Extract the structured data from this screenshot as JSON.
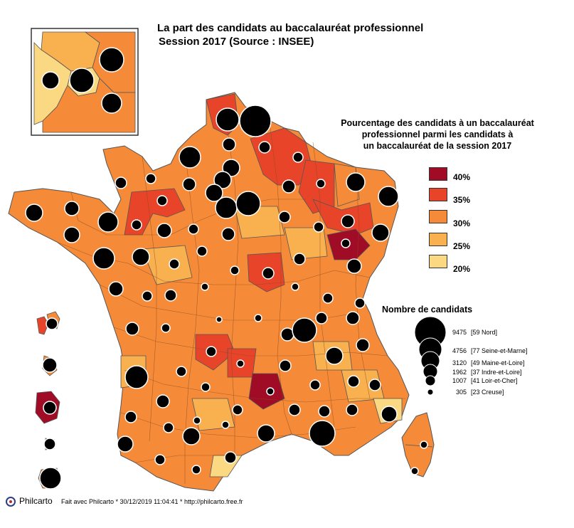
{
  "title": {
    "line1": "La part des candidats au baccalauréat professionnel",
    "line2": "Session 2017 (Source : INSEE)"
  },
  "legend": {
    "title_lines": [
      "Pourcentage des candidats à un baccalauréat",
      "professionnel parmi les candidats à",
      "un baccalauréat de la session 2017"
    ],
    "classes": [
      {
        "label": "40%",
        "color": "#a00b26"
      },
      {
        "label": "35%",
        "color": "#e8442a"
      },
      {
        "label": "30%",
        "color": "#f58b38"
      },
      {
        "label": "25%",
        "color": "#f9b04e"
      },
      {
        "label": "20%",
        "color": "#fbd882"
      }
    ]
  },
  "size_legend": {
    "title": "Nombre de candidats",
    "entries": [
      {
        "value": "9475",
        "name": "[59 Nord]"
      },
      {
        "value": "4756",
        "name": "[77 Seine-et-Marne]"
      },
      {
        "value": "3120",
        "name": "[49 Maine-et-Loire]"
      },
      {
        "value": "1962",
        "name": "[37 Indre-et-Loire]"
      },
      {
        "value": "1007",
        "name": "[41 Loir-et-Cher]"
      },
      {
        "value": "305",
        "name": "[23 Creuse]"
      }
    ]
  },
  "footer": {
    "brand": "Philcarto",
    "text": "Fait avec Philcarto * 30/12/2019 11:04:41 * http://philcarto.free.fr"
  },
  "map": {
    "border_color": "#555555",
    "bubble_color": "#000000",
    "bubble_stroke": "#ffffff",
    "departments": [
      {
        "c": 0,
        "d": 0
      },
      {
        "c": 1,
        "d": 0
      },
      {
        "c": 2,
        "d": 0
      }
    ]
  }
}
